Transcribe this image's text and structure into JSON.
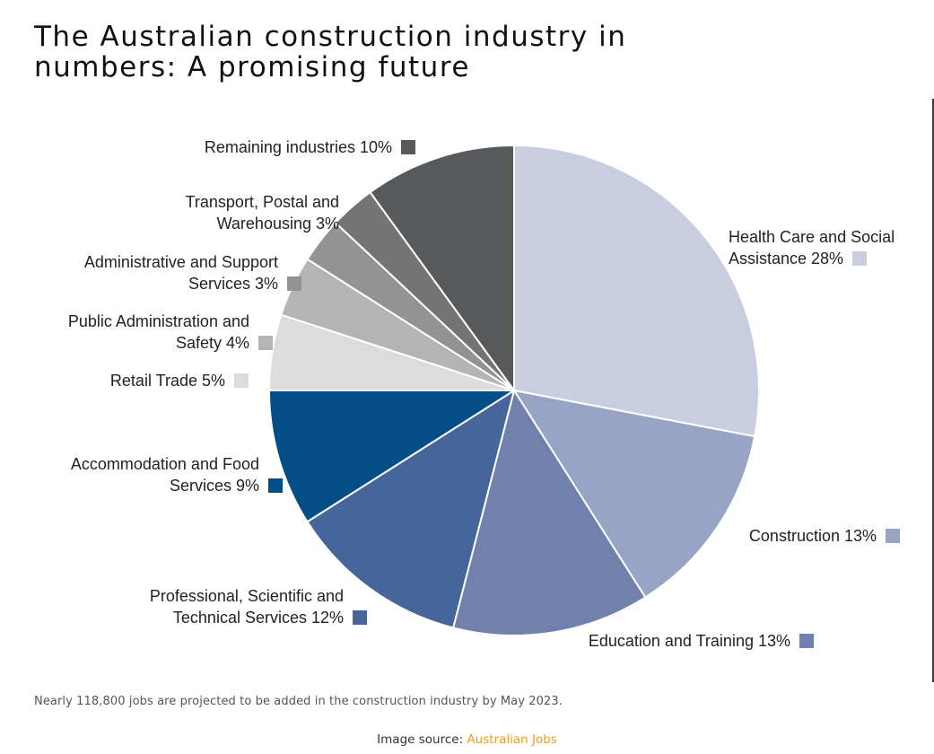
{
  "title_lines": [
    "The Australian construction industry in",
    "numbers: A promising future"
  ],
  "caption": "Nearly 118,800 jobs are projected to be added in the construction industry by May 2023.",
  "source": {
    "prefix": "Image source: ",
    "link_text": "Australian Jobs"
  },
  "chart_data": {
    "type": "pie",
    "title": "",
    "start": "top, clockwise",
    "legend": "labels beside slices with color swatch",
    "slices": [
      {
        "label_lines": [
          "Health Care and Social",
          "Assistance 28%"
        ],
        "value": 28,
        "color": "#c8cde0"
      },
      {
        "label_lines": [
          "Construction 13%"
        ],
        "value": 13,
        "color": "#97a4c4"
      },
      {
        "label_lines": [
          "Education and Training 13%"
        ],
        "value": 13,
        "color": "#7181ad"
      },
      {
        "label_lines": [
          "Professional, Scientific and",
          "Technical Services 12%"
        ],
        "value": 12,
        "color": "#46659a"
      },
      {
        "label_lines": [
          "Accommodation and Food",
          "Services 9%"
        ],
        "value": 9,
        "color": "#044e88"
      },
      {
        "label_lines": [
          "Retail Trade 5%"
        ],
        "value": 5,
        "color": "#dcdcdc"
      },
      {
        "label_lines": [
          "Public Administration and",
          "Safety 4%"
        ],
        "value": 4,
        "color": "#b4b4b4"
      },
      {
        "label_lines": [
          "Administrative and Support",
          "Services 3%"
        ],
        "value": 3,
        "color": "#939393"
      },
      {
        "label_lines": [
          "Transport, Postal and",
          "Warehousing 3%"
        ],
        "value": 3,
        "color": "#747474"
      },
      {
        "label_lines": [
          "Remaining industries 10%"
        ],
        "value": 10,
        "color": "#58595b"
      }
    ]
  }
}
